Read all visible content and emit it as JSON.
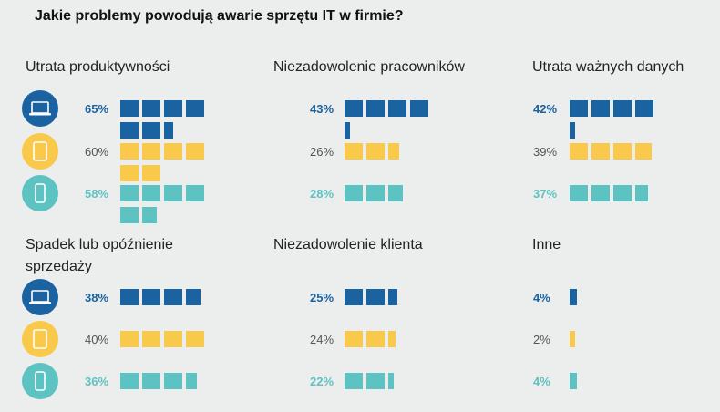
{
  "title": "Jakie problemy powodują awarie sprzętu IT w firmie?",
  "colors": {
    "laptop": "#1a63a0",
    "tablet": "#f8c94a",
    "phone": "#5dc3c2",
    "tablet_text": "#555555",
    "title": "#111111",
    "label": "#222222"
  },
  "devices": [
    {
      "key": "laptop",
      "icon": "laptop-icon"
    },
    {
      "key": "tablet",
      "icon": "tablet-icon"
    },
    {
      "key": "phone",
      "icon": "phone-icon"
    }
  ],
  "chart_data": {
    "type": "bar",
    "title": "Jakie problemy powodują awarie sprzętu IT w firmie?",
    "series_names": [
      "laptop",
      "tablet",
      "phone"
    ],
    "unit_per_block": 10,
    "groups": [
      {
        "label": [
          "Utrata produktywności"
        ],
        "values": [
          65,
          60,
          58
        ],
        "labels": [
          "65%",
          "60%",
          "58%"
        ]
      },
      {
        "label": [
          "Niezadowolenie pracowników"
        ],
        "values": [
          43,
          26,
          28
        ],
        "labels": [
          "43%",
          "26%",
          "28%"
        ]
      },
      {
        "label": [
          "Utrata ważnych danych"
        ],
        "values": [
          42,
          39,
          37
        ],
        "labels": [
          "42%",
          "39%",
          "37%"
        ]
      },
      {
        "label": [
          "Spadek lub opóźnienie",
          "sprzedaży"
        ],
        "values": [
          38,
          40,
          36
        ],
        "labels": [
          "38%",
          "40%",
          "36%"
        ]
      },
      {
        "label": [
          "Niezadowolenie klienta"
        ],
        "values": [
          25,
          24,
          22
        ],
        "labels": [
          "25%",
          "24%",
          "22%"
        ]
      },
      {
        "label": [
          "Inne"
        ],
        "values": [
          4,
          2,
          4
        ],
        "labels": [
          "4%",
          "2%",
          "4%"
        ]
      }
    ]
  }
}
